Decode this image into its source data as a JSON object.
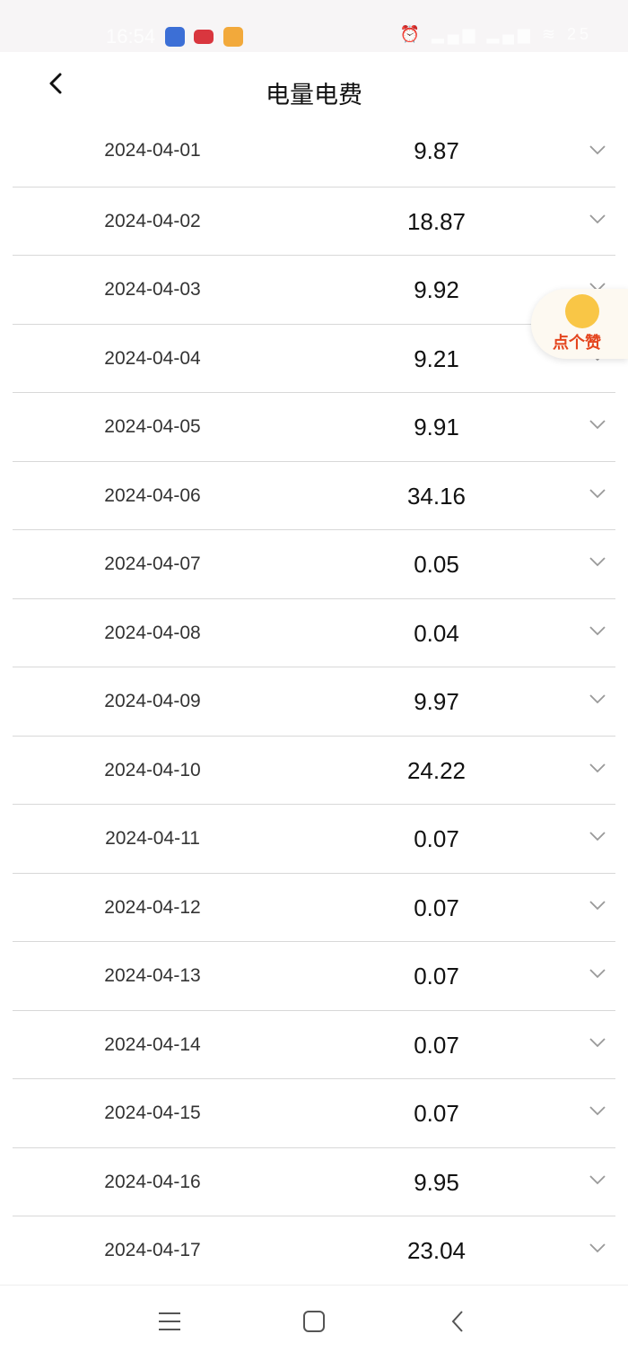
{
  "status_bar": {
    "time": "16:54",
    "battery": "25"
  },
  "header": {
    "title": "电量电费"
  },
  "rows": [
    {
      "date": "2024-04-01",
      "value": "9.87"
    },
    {
      "date": "2024-04-02",
      "value": "18.87"
    },
    {
      "date": "2024-04-03",
      "value": "9.92"
    },
    {
      "date": "2024-04-04",
      "value": "9.21"
    },
    {
      "date": "2024-04-05",
      "value": "9.91"
    },
    {
      "date": "2024-04-06",
      "value": "34.16"
    },
    {
      "date": "2024-04-07",
      "value": "0.05"
    },
    {
      "date": "2024-04-08",
      "value": "0.04"
    },
    {
      "date": "2024-04-09",
      "value": "9.97"
    },
    {
      "date": "2024-04-10",
      "value": "24.22"
    },
    {
      "date": "2024-04-11",
      "value": "0.07"
    },
    {
      "date": "2024-04-12",
      "value": "0.07"
    },
    {
      "date": "2024-04-13",
      "value": "0.07"
    },
    {
      "date": "2024-04-14",
      "value": "0.07"
    },
    {
      "date": "2024-04-15",
      "value": "0.07"
    },
    {
      "date": "2024-04-16",
      "value": "9.95"
    },
    {
      "date": "2024-04-17",
      "value": "23.04"
    }
  ],
  "like_button": {
    "label": "点个赞"
  }
}
